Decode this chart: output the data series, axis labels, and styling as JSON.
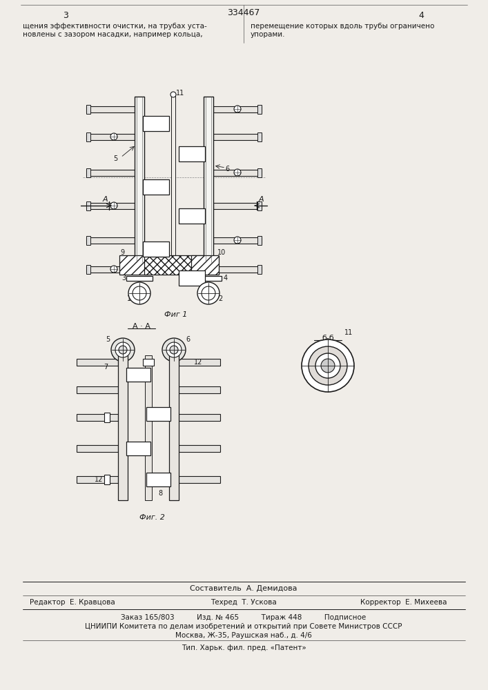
{
  "page_number_left": "3",
  "page_number_right": "4",
  "patent_number": "334467",
  "text_left": "щения эффективности очистки, на трубах уста-\nновлены с зазором насадки, например кольца,",
  "text_right": "перемещение которых вдоль трубы ограничено\nупорами.",
  "fig1_label": "Фиг 1",
  "fig2_label": "Фиг. 2",
  "section_aa": "А · А",
  "section_bb": "б-б",
  "footer_line1": "Составитель  А. Демидова",
  "footer_line2_left": "Редактор  Е. Кравцова",
  "footer_line2_mid": "Техред  Т. Ускова",
  "footer_line2_right": "Корректор  Е. Михеева",
  "footer_line3": "Заказ 165/803          Изд. № 465          Тираж 448          Подписное",
  "footer_line4": "ЦНИИПИ Комитета по делам изобретений и открытий при Совете Министров СССР",
  "footer_line5": "Москва, Ж-35, Раушская наб., д. 4/6",
  "footer_line6": "Тип. Харьк. фил. пред. «Патент»",
  "bg_color": "#f0ede8"
}
